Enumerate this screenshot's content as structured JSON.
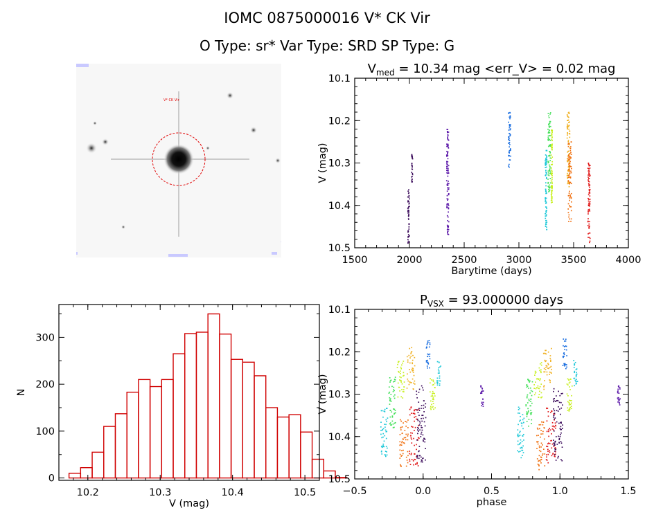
{
  "header": {
    "title_line1": "IOMC 0875000016     V* CK Vir",
    "title_line2": "O Type: sr*   Var Type: SRD   SP Type: G"
  },
  "image_panel": {
    "marker_label": "V* CK Vir"
  },
  "colors": {
    "hist": "#d00000",
    "circle": "#e00000",
    "series": [
      "#3a0a5a",
      "#5a16a8",
      "#1a6ee0",
      "#1ec8d8",
      "#44e05a",
      "#c8f020",
      "#f0b020",
      "#f07010",
      "#e01818"
    ]
  },
  "chart_data": [
    {
      "type": "scatter",
      "title": "V_med = 10.34 mag <err_V> = 0.02 mag",
      "title_parts": {
        "main": "V",
        "sub": "med",
        "rest": " = 10.34 mag <err_V> = 0.02 mag"
      },
      "xlabel": "Barytime (days)",
      "ylabel": "V (mag)",
      "xlim": [
        1500,
        4000
      ],
      "ylim": [
        10.5,
        10.1
      ],
      "xticks": [
        "1500",
        "2000",
        "2500",
        "3000",
        "3500",
        "4000"
      ],
      "yticks": [
        "10.1",
        "10.2",
        "10.3",
        "10.4",
        "10.5"
      ],
      "segments": [
        {
          "x": [
            1985,
            2000
          ],
          "ymin": 10.36,
          "ymax": 10.49,
          "color_index": 0
        },
        {
          "x": [
            2020,
            2030
          ],
          "ymin": 10.28,
          "ymax": 10.35,
          "color_index": 0
        },
        {
          "x": [
            2340,
            2360
          ],
          "ymin": 10.22,
          "ymax": 10.47,
          "color_index": 1
        },
        {
          "x": [
            2905,
            2925
          ],
          "ymin": 10.18,
          "ymax": 10.31,
          "color_index": 2
        },
        {
          "x": [
            3240,
            3255
          ],
          "ymin": 10.27,
          "ymax": 10.46,
          "color_index": 3
        },
        {
          "x": [
            3265,
            3290
          ],
          "ymin": 10.18,
          "ymax": 10.37,
          "color_index": 4
        },
        {
          "x": [
            3295,
            3305
          ],
          "ymin": 10.22,
          "ymax": 10.4,
          "color_index": 5
        },
        {
          "x": [
            3440,
            3465
          ],
          "ymin": 10.18,
          "ymax": 10.36,
          "color_index": 6
        },
        {
          "x": [
            3450,
            3480
          ],
          "ymin": 10.25,
          "ymax": 10.44,
          "color_index": 7
        },
        {
          "x": [
            3630,
            3650
          ],
          "ymin": 10.3,
          "ymax": 10.49,
          "color_index": 8
        }
      ]
    },
    {
      "type": "bar",
      "title": "",
      "xlabel": "V (mag)",
      "ylabel": "N",
      "xlim": [
        10.16,
        10.52
      ],
      "ylim": [
        -5,
        370
      ],
      "xticks": [
        "10.2",
        "10.3",
        "10.4",
        "10.5"
      ],
      "yticks": [
        "0",
        "100",
        "200",
        "300"
      ],
      "bin_width": 0.016,
      "bin_start": 10.174,
      "values": [
        10,
        22,
        55,
        110,
        137,
        183,
        210,
        195,
        210,
        265,
        308,
        311,
        350,
        307,
        253,
        247,
        218,
        150,
        130,
        135,
        98,
        40,
        15,
        1
      ]
    },
    {
      "type": "scatter",
      "title": "P_VSX = 93.000000 days",
      "title_parts": {
        "main": "P",
        "sub": "VSX",
        "rest": " = 93.000000 days"
      },
      "xlabel": "phase",
      "ylabel": "V (mag)",
      "xlim": [
        -0.5,
        1.5
      ],
      "ylim": [
        10.5,
        10.1
      ],
      "xticks": [
        "−0.5",
        "0.0",
        "0.5",
        "1.0",
        "1.5"
      ],
      "yticks": [
        "10.1",
        "10.2",
        "10.3",
        "10.4",
        "10.5"
      ],
      "segments": [
        {
          "x": [
            -0.31,
            -0.26
          ],
          "ymin": 10.33,
          "ymax": 10.45,
          "color_index": 3
        },
        {
          "x": [
            -0.25,
            -0.2
          ],
          "ymin": 10.26,
          "ymax": 10.38,
          "color_index": 4
        },
        {
          "x": [
            -0.19,
            -0.13
          ],
          "ymin": 10.22,
          "ymax": 10.31,
          "color_index": 5
        },
        {
          "x": [
            -0.17,
            -0.11
          ],
          "ymin": 10.36,
          "ymax": 10.48,
          "color_index": 7
        },
        {
          "x": [
            -0.12,
            -0.06
          ],
          "ymin": 10.19,
          "ymax": 10.29,
          "color_index": 6
        },
        {
          "x": [
            -0.1,
            -0.03
          ],
          "ymin": 10.33,
          "ymax": 10.47,
          "color_index": 8
        },
        {
          "x": [
            -0.05,
            0.02
          ],
          "ymin": 10.28,
          "ymax": 10.46,
          "color_index": 0
        },
        {
          "x": [
            0.02,
            0.05
          ],
          "ymin": 10.17,
          "ymax": 10.24,
          "color_index": 2
        },
        {
          "x": [
            0.05,
            0.09
          ],
          "ymin": 10.26,
          "ymax": 10.34,
          "color_index": 5
        },
        {
          "x": [
            0.1,
            0.13
          ],
          "ymin": 10.22,
          "ymax": 10.28,
          "color_index": 3
        },
        {
          "x": [
            0.42,
            0.44
          ],
          "ymin": 10.28,
          "ymax": 10.33,
          "color_index": 1
        },
        {
          "x": [
            0.69,
            0.74
          ],
          "ymin": 10.33,
          "ymax": 10.45,
          "color_index": 3
        },
        {
          "x": [
            0.75,
            0.8
          ],
          "ymin": 10.26,
          "ymax": 10.38,
          "color_index": 4
        },
        {
          "x": [
            0.81,
            0.87
          ],
          "ymin": 10.22,
          "ymax": 10.31,
          "color_index": 5
        },
        {
          "x": [
            0.83,
            0.89
          ],
          "ymin": 10.36,
          "ymax": 10.48,
          "color_index": 7
        },
        {
          "x": [
            0.88,
            0.94
          ],
          "ymin": 10.19,
          "ymax": 10.29,
          "color_index": 6
        },
        {
          "x": [
            0.9,
            0.97
          ],
          "ymin": 10.33,
          "ymax": 10.47,
          "color_index": 8
        },
        {
          "x": [
            0.95,
            1.02
          ],
          "ymin": 10.28,
          "ymax": 10.46,
          "color_index": 0
        },
        {
          "x": [
            1.02,
            1.05
          ],
          "ymin": 10.17,
          "ymax": 10.24,
          "color_index": 2
        },
        {
          "x": [
            1.05,
            1.09
          ],
          "ymin": 10.26,
          "ymax": 10.34,
          "color_index": 5
        },
        {
          "x": [
            1.1,
            1.13
          ],
          "ymin": 10.22,
          "ymax": 10.28,
          "color_index": 3
        },
        {
          "x": [
            1.42,
            1.44
          ],
          "ymin": 10.28,
          "ymax": 10.33,
          "color_index": 1
        }
      ]
    }
  ]
}
